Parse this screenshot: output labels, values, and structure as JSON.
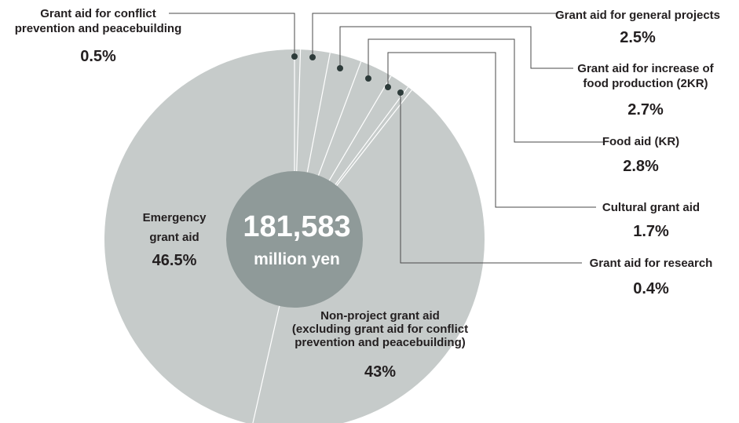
{
  "chart_data": {
    "type": "pie",
    "center_value": "181,583",
    "center_unit": "million yen",
    "slices": [
      {
        "label_lines": [
          "Grant aid for conflict",
          "prevention and peacebuilding"
        ],
        "percent_text": "0.5%",
        "value": 0.5
      },
      {
        "label_lines": [
          "Grant aid for general projects"
        ],
        "percent_text": "2.5%",
        "value": 2.5
      },
      {
        "label_lines": [
          "Grant aid for increase of",
          "food production (2KR)"
        ],
        "percent_text": "2.7%",
        "value": 2.7
      },
      {
        "label_lines": [
          "Food aid (KR)"
        ],
        "percent_text": "2.8%",
        "value": 2.8
      },
      {
        "label_lines": [
          "Cultural grant aid"
        ],
        "percent_text": "1.7%",
        "value": 1.7
      },
      {
        "label_lines": [
          "Grant aid for research"
        ],
        "percent_text": "0.4%",
        "value": 0.4
      },
      {
        "label_lines": [
          "Non-project grant aid",
          "(excluding grant aid for conflict",
          "prevention and peacebuilding)"
        ],
        "percent_text": "43%",
        "value": 43
      },
      {
        "label_lines": [
          "Emergency",
          "grant aid"
        ],
        "percent_text": "46.5%",
        "value": 46.5
      }
    ],
    "colors": {
      "slice": "#c6cbca",
      "center": "#8f9a99",
      "divider": "#ffffff",
      "leader": "#4a4a4a",
      "dot": "#2d3b3a"
    }
  }
}
